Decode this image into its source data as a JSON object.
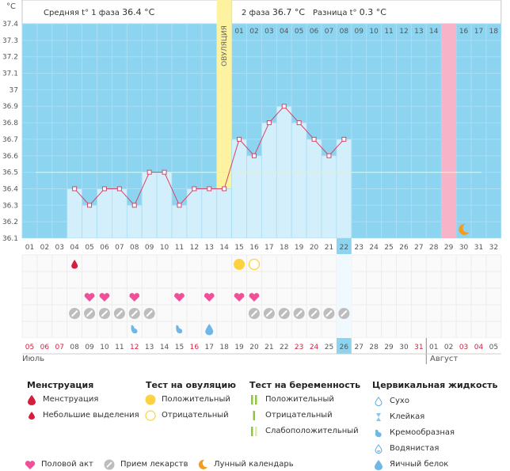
{
  "header": {
    "unit": "°C",
    "phase1_label": "Средняя t° 1 фаза",
    "phase1_value": "36.4 °C",
    "phase2_label": "2 фаза",
    "phase2_value": "36.7 °C",
    "diff_label": "Разница t°",
    "diff_value": "0.3 °C"
  },
  "ovulation_label": "ОВУЛЯЦИЯ",
  "chart_data": {
    "type": "line",
    "ylim": [
      36.1,
      37.4
    ],
    "y_ticks": [
      "37.4",
      "37.3",
      "37.2",
      "37.1",
      "37",
      "36.9",
      "36.8",
      "36.7",
      "36.6",
      "36.5",
      "36.4",
      "36.3",
      "36.2",
      "36.1"
    ],
    "cycle_days": [
      "01",
      "02",
      "03",
      "04",
      "05",
      "06",
      "07",
      "08",
      "09",
      "10",
      "11",
      "12",
      "13",
      "14",
      "15",
      "16",
      "17",
      "18",
      "19",
      "20",
      "21",
      "22",
      "23",
      "24",
      "25",
      "26",
      "27",
      "28",
      "29",
      "30",
      "31",
      "32"
    ],
    "top_days": [
      "01",
      "02",
      "03",
      "04",
      "05",
      "06",
      "07",
      "08",
      "09",
      "10",
      "11",
      "12",
      "13",
      "14",
      "15",
      "16",
      "17",
      "18"
    ],
    "temps": [
      null,
      null,
      null,
      36.4,
      36.3,
      36.4,
      36.4,
      36.3,
      36.5,
      36.5,
      36.3,
      36.4,
      36.4,
      36.4,
      36.7,
      36.6,
      36.8,
      36.9,
      36.8,
      36.7,
      36.6,
      36.7,
      null,
      null,
      null,
      null,
      null,
      null,
      null,
      null,
      null,
      null
    ],
    "coverline": 36.5,
    "ovulation_day": 14,
    "current_day": "22",
    "highlight_day": "15",
    "moon_day": 30
  },
  "calendar": {
    "month1": "Июль",
    "month2": "Август",
    "dates": [
      "05",
      "06",
      "07",
      "08",
      "09",
      "10",
      "11",
      "12",
      "13",
      "14",
      "15",
      "16",
      "17",
      "18",
      "19",
      "20",
      "21",
      "22",
      "23",
      "24",
      "25",
      "26",
      "27",
      "28",
      "29",
      "30",
      "31",
      "01",
      "02",
      "03",
      "04",
      "05"
    ],
    "red_indices": [
      0,
      1,
      2,
      7,
      11,
      18,
      19,
      26,
      29,
      30
    ],
    "today_index": 21
  },
  "markers": {
    "menstruation_days": [
      4
    ],
    "ovulation_test_pos_days": [
      15
    ],
    "ovulation_test_neg_days": [
      16
    ],
    "intercourse_days": [
      5,
      6,
      8,
      11,
      13,
      15,
      16
    ],
    "medication_days": [
      4,
      5,
      6,
      7,
      8,
      9,
      16,
      17,
      18,
      19,
      20,
      21,
      22
    ],
    "fluid_creamy_days": [
      8,
      11
    ],
    "fluid_eggwhite_days": [
      13
    ]
  },
  "legend": {
    "menstruation": {
      "title": "Менструация",
      "items": [
        "Менструация",
        "Небольшие выделения"
      ]
    },
    "ovulation_test": {
      "title": "Тест на овуляцию",
      "items": [
        "Положительный",
        "Отрицательный"
      ]
    },
    "pregnancy_test": {
      "title": "Тест на беременность",
      "items": [
        "Положительный",
        "Отрицательный",
        "Слабоположительный"
      ]
    },
    "cervical": {
      "title": "Цервикальная жидкость",
      "items": [
        "Сухо",
        "Клейкая",
        "Кремообразная",
        "Водянистая",
        "Яичный белок"
      ]
    },
    "bottom": [
      "Половой акт",
      "Прием лекарств",
      "Лунный календарь"
    ]
  },
  "colors": {
    "chart_bg": "#8dd4f0",
    "bar_fill": "#d4effc",
    "bar_stroke": "#a9dcf2",
    "line": "#d4456a",
    "ovulation": "#fdf2a0",
    "ovulation_dot": "#fcd23e",
    "highlight": "#f7b4c8",
    "heart": "#f0509a",
    "red": "#d41e3e",
    "moon": "#f29d1e",
    "coverline": "#f2f0a0"
  }
}
